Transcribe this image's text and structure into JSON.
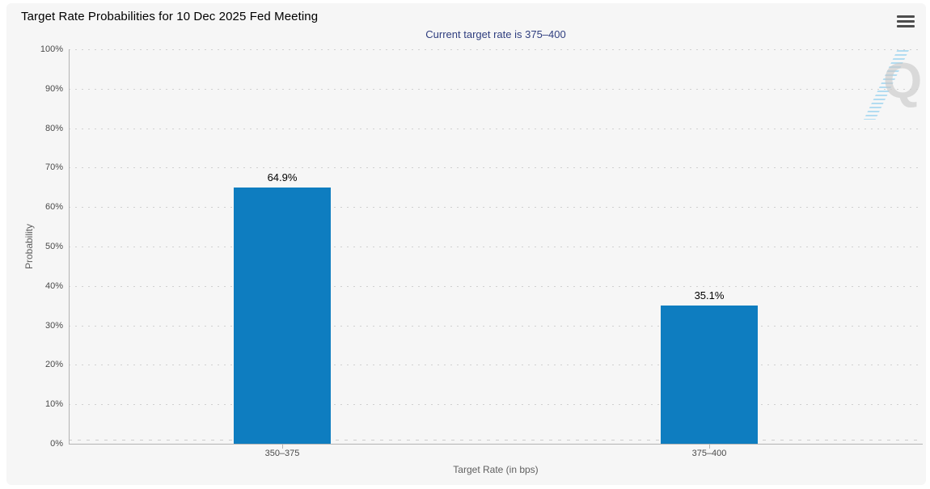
{
  "chart_data": {
    "type": "bar",
    "title": "Target Rate Probabilities for 10 Dec 2025 Fed Meeting",
    "subtitle": "Current target rate is 375–400",
    "categories": [
      "350–375",
      "375–400"
    ],
    "values": [
      64.9,
      35.1
    ],
    "value_labels": [
      "64.9%",
      "35.1%"
    ],
    "xlabel": "Target Rate (in bps)",
    "ylabel": "Probability",
    "ylim": [
      0,
      100
    ],
    "ytick_step": 10,
    "ytick_labels": [
      "0%",
      "10%",
      "20%",
      "30%",
      "40%",
      "50%",
      "60%",
      "70%",
      "80%",
      "90%",
      "100%"
    ],
    "grid": "horizontal-dotted",
    "legend": "none",
    "bar_color": "#0e7dc0"
  },
  "colors": {
    "bar": "#0e7dc0",
    "subtitle_text": "#2f3e7f",
    "panel_bg": "#f6f6f6",
    "axis_line": "#b3b3b3",
    "grid_dot": "#d0d0d0",
    "tick_label": "#4a4a4a",
    "axis_title": "#5f5f5f",
    "title_text": "#000000",
    "menu_icon": "#4d4d4d",
    "watermark_gray": "#c8c8c8",
    "watermark_blue": "#9bd4ef"
  },
  "icons": {
    "menu": "hamburger-menu",
    "watermark_letter": "Q"
  }
}
